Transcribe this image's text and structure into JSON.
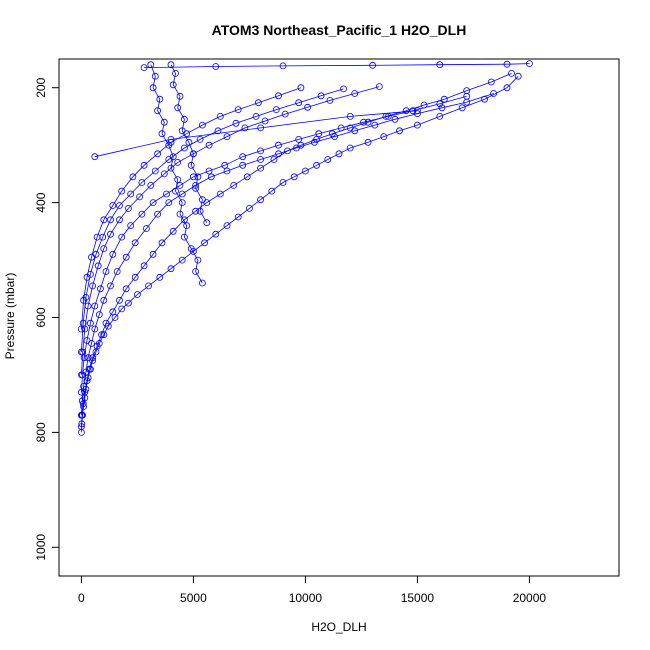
{
  "chart_data": {
    "type": "scatter",
    "title": "ATOM3 Northeast_Pacific_1 H2O_DLH",
    "xlabel": "H2O_DLH",
    "ylabel": "Pressure (mbar)",
    "xlim": [
      -1000,
      24000
    ],
    "ylim": [
      1050,
      150
    ],
    "y_reversed": true,
    "x_ticks": [
      0,
      5000,
      10000,
      15000,
      20000
    ],
    "x_tick_labels": [
      "0",
      "5000",
      "10000",
      "15000",
      "20000"
    ],
    "y_ticks": [
      200,
      400,
      600,
      800,
      1000
    ],
    "y_tick_labels": [
      "200",
      "400",
      "600",
      "800",
      "1000"
    ],
    "marker": "open-circle",
    "connect_points": true,
    "color": "#0000ff",
    "grid": false,
    "series": [
      {
        "x": [
          0,
          20,
          50,
          100,
          150,
          200,
          300,
          400,
          500,
          650,
          800,
          1000,
          1200,
          1500,
          1800,
          2100,
          2500,
          3000,
          3500,
          4000,
          4500,
          5000,
          5500,
          6000,
          6500,
          7000,
          7500,
          8000,
          8500,
          9000,
          9500,
          10000,
          10500,
          11000,
          11500,
          12000,
          12800,
          13500,
          14200,
          15000,
          16000,
          17000,
          18000,
          19000,
          19500
        ],
        "y": [
          800,
          785,
          770,
          755,
          740,
          725,
          705,
          690,
          675,
          660,
          645,
          630,
          615,
          600,
          585,
          575,
          560,
          545,
          530,
          515,
          500,
          485,
          470,
          455,
          440,
          425,
          410,
          395,
          380,
          365,
          355,
          345,
          335,
          325,
          315,
          305,
          295,
          285,
          275,
          265,
          250,
          235,
          220,
          200,
          180
        ]
      },
      {
        "x": [
          0,
          30,
          80,
          150,
          250,
          350,
          500,
          700,
          900,
          1100,
          1400,
          1700,
          2000,
          2400,
          2800,
          3200,
          3600,
          4100,
          4600,
          5100,
          5600,
          6200,
          6800,
          7400,
          8000,
          8600,
          9200,
          9800,
          10500,
          11200,
          12000,
          12800,
          13600,
          14500,
          15300,
          16200,
          17200,
          18300,
          19200
        ],
        "y": [
          790,
          770,
          750,
          730,
          710,
          690,
          670,
          650,
          630,
          610,
          590,
          570,
          550,
          530,
          510,
          490,
          470,
          450,
          430,
          415,
          400,
          385,
          370,
          355,
          340,
          325,
          310,
          300,
          290,
          280,
          270,
          260,
          250,
          240,
          230,
          220,
          205,
          190,
          175
        ]
      },
      {
        "x": [
          0,
          40,
          100,
          200,
          300,
          450,
          600,
          800,
          1000,
          1300,
          1600,
          2000,
          2400,
          2900,
          3400,
          3900,
          4500,
          5100,
          5800,
          6500,
          7200,
          8000,
          8800,
          9600,
          10400,
          11300,
          12200,
          13100,
          14000,
          15000,
          16100,
          17200,
          18400
        ],
        "y": [
          770,
          745,
          720,
          695,
          670,
          645,
          620,
          595,
          570,
          545,
          520,
          495,
          470,
          445,
          420,
          400,
          385,
          370,
          355,
          345,
          335,
          325,
          315,
          305,
          295,
          285,
          275,
          265,
          255,
          245,
          235,
          225,
          210
        ]
      },
      {
        "x": [
          0,
          50,
          120,
          250,
          400,
          600,
          850,
          1100,
          1400,
          1800,
          2200,
          2700,
          3200,
          3800,
          4400,
          5000,
          5700,
          6400,
          7200,
          8000,
          8800,
          9700,
          10600,
          11600,
          12600,
          13700,
          14800,
          16000,
          17200
        ],
        "y": [
          730,
          700,
          670,
          640,
          610,
          580,
          550,
          520,
          490,
          460,
          440,
          420,
          400,
          385,
          370,
          355,
          345,
          335,
          320,
          310,
          300,
          290,
          280,
          270,
          260,
          250,
          240,
          228,
          215
        ]
      },
      {
        "x": [
          0,
          60,
          150,
          300,
          500,
          750,
          1000,
          1300,
          1700,
          2100,
          2600,
          3100,
          3700,
          4300,
          5000,
          5700,
          6500,
          7300,
          8200,
          9100,
          10100,
          11100,
          12200,
          13300
        ],
        "y": [
          700,
          660,
          620,
          580,
          545,
          510,
          480,
          455,
          430,
          410,
          390,
          370,
          350,
          330,
          315,
          300,
          285,
          270,
          258,
          246,
          234,
          222,
          210,
          198
        ]
      },
      {
        "x": [
          0,
          80,
          200,
          400,
          650,
          950,
          1300,
          1700,
          2200,
          2700,
          3300,
          3900,
          4600,
          5300,
          6100,
          6900,
          7800,
          8700,
          9700,
          10700,
          11700
        ],
        "y": [
          660,
          610,
          565,
          525,
          490,
          460,
          430,
          405,
          385,
          365,
          345,
          325,
          305,
          290,
          275,
          262,
          250,
          238,
          226,
          214,
          202
        ]
      },
      {
        "x": [
          0,
          100,
          250,
          450,
          700,
          1000,
          1400,
          1800,
          2300,
          2800,
          3400,
          4000,
          4700,
          5400,
          6200,
          7000,
          7900,
          8800,
          9800
        ],
        "y": [
          620,
          570,
          530,
          495,
          460,
          430,
          405,
          380,
          355,
          335,
          315,
          295,
          280,
          265,
          250,
          238,
          226,
          214,
          200
        ]
      },
      {
        "x": [
          3100,
          3300,
          3200,
          3500,
          3400,
          3700,
          3600,
          3900,
          4100,
          4000,
          4300,
          4200,
          4500,
          4400,
          4700,
          4600,
          4900,
          5200,
          5100,
          5400
        ],
        "y": [
          160,
          180,
          200,
          220,
          240,
          260,
          280,
          300,
          320,
          340,
          360,
          380,
          400,
          420,
          440,
          460,
          480,
          500,
          520,
          540
        ]
      },
      {
        "x": [
          4000,
          4200,
          4100,
          4400,
          4300,
          4600,
          4500,
          4800,
          5000,
          4900,
          5200,
          5100,
          5400,
          5300,
          5600
        ],
        "y": [
          160,
          175,
          195,
          215,
          235,
          255,
          275,
          295,
          315,
          335,
          355,
          375,
          395,
          415,
          435
        ]
      },
      {
        "x": [
          2800,
          6000,
          9000,
          13000,
          16000,
          19000,
          20000
        ],
        "y": [
          165,
          163,
          162,
          161,
          160,
          159,
          158
        ]
      },
      {
        "x": [
          600,
          4000,
          8000,
          12000,
          15000
        ],
        "y": [
          320,
          290,
          270,
          250,
          240
        ]
      }
    ]
  }
}
